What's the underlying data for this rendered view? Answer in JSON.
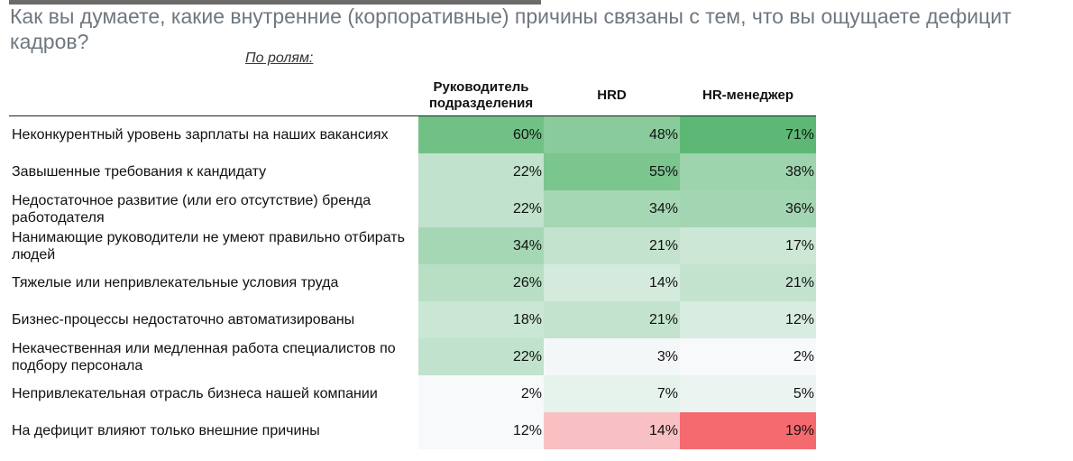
{
  "chart_data": {
    "type": "heatmap",
    "title": "Как вы думаете, какие внутренние (корпоративные) причины связаны с тем, что вы ощущаете дефицит кадров?",
    "subtitle": "По ролям:",
    "columns": [
      "Руководитель подразделения",
      "HRD",
      "HR-менеджер"
    ],
    "rows": [
      {
        "label": "Неконкурентный уровень зарплаты на наших вакансиях",
        "values": [
          60,
          48,
          71
        ]
      },
      {
        "label": "Завышенные требования к кандидату",
        "values": [
          22,
          55,
          38
        ]
      },
      {
        "label": "Недостаточное развитие (или его отсутствие) бренда работодателя",
        "values": [
          22,
          34,
          36
        ]
      },
      {
        "label": "Нанимающие руководители не умеют правильно отбирать людей",
        "values": [
          34,
          21,
          17
        ]
      },
      {
        "label": "Тяжелые или непривлекательные условия труда",
        "values": [
          26,
          14,
          21
        ]
      },
      {
        "label": "Бизнес-процессы недостаточно автоматизированы",
        "values": [
          18,
          21,
          12
        ]
      },
      {
        "label": "Некачественная или медленная работа специалистов по подбору персонала",
        "values": [
          22,
          3,
          2
        ]
      },
      {
        "label": "Непривлекательная отрасль бизнеса нашей компании",
        "values": [
          2,
          7,
          5
        ]
      },
      {
        "label": "На дефицит влияют только внешние причины",
        "values": [
          12,
          14,
          19
        ],
        "palette": "negative"
      }
    ],
    "value_suffix": "%",
    "colors": {
      "positive_low": "#f7f9fb",
      "positive_high": "#5cb874",
      "negative_low": "#fbe3e5",
      "negative_high": "#f56a6e"
    }
  }
}
